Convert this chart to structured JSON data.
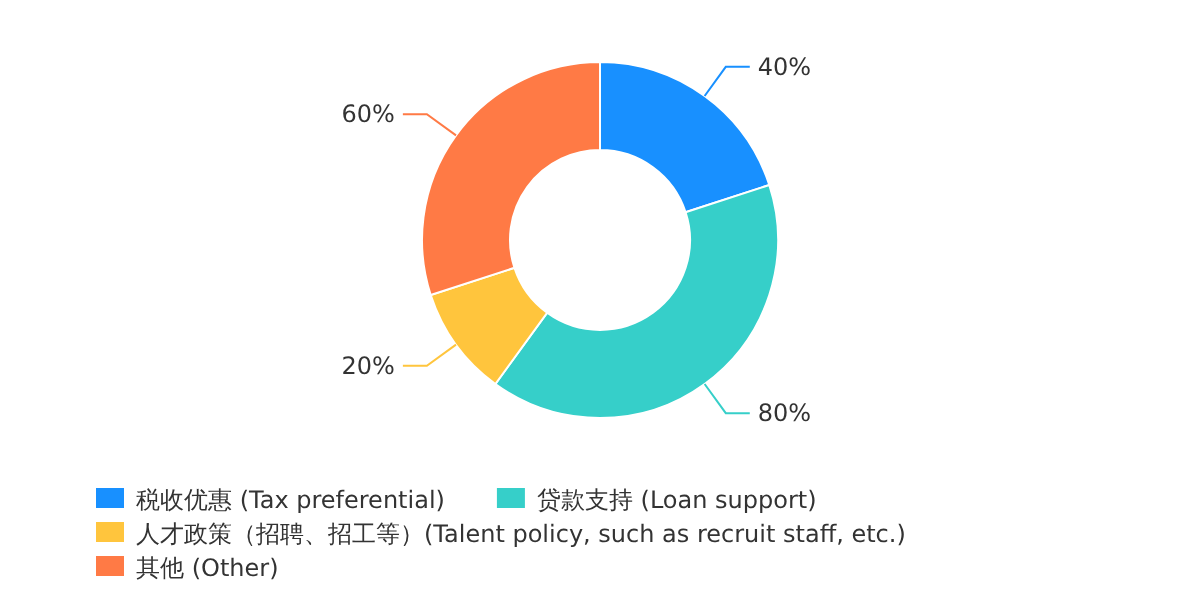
{
  "chart_data": {
    "type": "donut",
    "categories": [
      "税收优惠 (Tax preferential)",
      "贷款支持 (Loan support)",
      "人才政策（招聘、招工等）(Talent policy, such as recruit staff, etc.)",
      "其他 (Other)"
    ],
    "values": [
      40,
      80,
      20,
      60
    ],
    "value_labels": [
      "40%",
      "80%",
      "20%",
      "60%"
    ],
    "colors": [
      "#1890ff",
      "#36cfc9",
      "#ffc53d",
      "#ff7a45"
    ],
    "legend": "bottom"
  }
}
